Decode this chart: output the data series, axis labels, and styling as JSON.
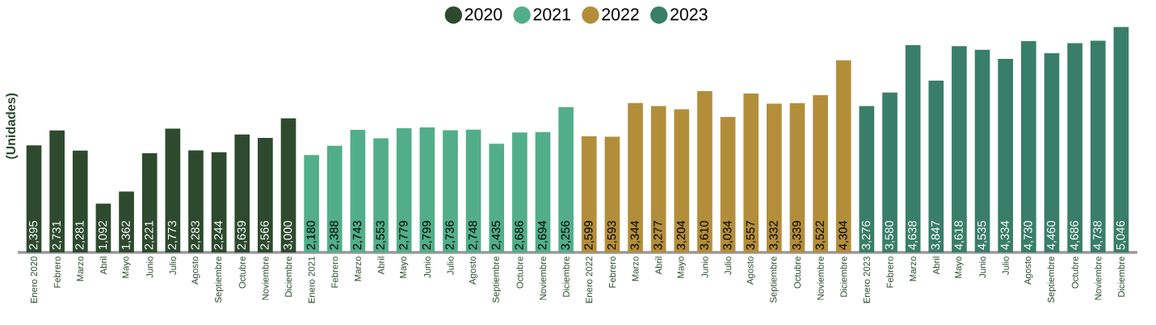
{
  "chart_data": {
    "type": "bar",
    "ylabel": "(Unidades)",
    "categories": [
      "Enero 2020",
      "Febrero",
      "Marzo",
      "Abril",
      "Mayo",
      "Junio",
      "Julio",
      "Agosto",
      "Septiembre",
      "Octubre",
      "Noviembre",
      "Diciembre",
      "Enero 2021",
      "Febrero",
      "Marzo",
      "Abril",
      "Mayo",
      "Junio",
      "Julio",
      "Agosto",
      "Septiembre",
      "Octubre",
      "Noviembre",
      "Diciembre",
      "Enero 2022",
      "Febrero",
      "Marzo",
      "Abril",
      "Mayo",
      "Junio",
      "Julio",
      "Agosto",
      "Septiembre",
      "Octubre",
      "Noviembre",
      "Diciembre",
      "Enero 2023",
      "Febrero",
      "Marzo",
      "Abril",
      "Mayo",
      "Junio",
      "Julio",
      "Agosto",
      "Septiembre",
      "Octubre",
      "Noviembre",
      "Diciembre"
    ],
    "series": [
      {
        "name": "2020",
        "color": "#2d4a2e",
        "values": [
          2395,
          2731,
          2281,
          1092,
          1362,
          2221,
          2773,
          2283,
          2244,
          2639,
          2566,
          3000,
          null,
          null,
          null,
          null,
          null,
          null,
          null,
          null,
          null,
          null,
          null,
          null,
          null,
          null,
          null,
          null,
          null,
          null,
          null,
          null,
          null,
          null,
          null,
          null,
          null,
          null,
          null,
          null,
          null,
          null,
          null,
          null,
          null,
          null,
          null,
          null
        ],
        "value_labels": [
          "2,395",
          "2,731",
          "2,281",
          "1,092",
          "1,362",
          "2,221",
          "2,773",
          "2,283",
          "2,244",
          "2,639",
          "2,566",
          "3,000",
          null,
          null,
          null,
          null,
          null,
          null,
          null,
          null,
          null,
          null,
          null,
          null,
          null,
          null,
          null,
          null,
          null,
          null,
          null,
          null,
          null,
          null,
          null,
          null,
          null,
          null,
          null,
          null,
          null,
          null,
          null,
          null,
          null,
          null,
          null,
          null
        ]
      },
      {
        "name": "2021",
        "color": "#52ae8a",
        "values": [
          null,
          null,
          null,
          null,
          null,
          null,
          null,
          null,
          null,
          null,
          null,
          null,
          2180,
          2388,
          2743,
          2553,
          2779,
          2799,
          2736,
          2748,
          2435,
          2686,
          2694,
          3256,
          null,
          null,
          null,
          null,
          null,
          null,
          null,
          null,
          null,
          null,
          null,
          null,
          null,
          null,
          null,
          null,
          null,
          null,
          null,
          null,
          null,
          null,
          null,
          null
        ],
        "value_labels": [
          null,
          null,
          null,
          null,
          null,
          null,
          null,
          null,
          null,
          null,
          null,
          null,
          "2,180",
          "2,388",
          "2,743",
          "2,553",
          "2,779",
          "2,799",
          "2,736",
          "2,748",
          "2,435",
          "2,686",
          "2,694",
          "3,256",
          null,
          null,
          null,
          null,
          null,
          null,
          null,
          null,
          null,
          null,
          null,
          null,
          null,
          null,
          null,
          null,
          null,
          null,
          null,
          null,
          null,
          null,
          null,
          null
        ]
      },
      {
        "name": "2022",
        "color": "#b38e3a",
        "values": [
          null,
          null,
          null,
          null,
          null,
          null,
          null,
          null,
          null,
          null,
          null,
          null,
          null,
          null,
          null,
          null,
          null,
          null,
          null,
          null,
          null,
          null,
          null,
          null,
          2599,
          2593,
          3344,
          3277,
          3204,
          3610,
          3034,
          3557,
          3332,
          3339,
          3522,
          4304,
          null,
          null,
          null,
          null,
          null,
          null,
          null,
          null,
          null,
          null,
          null,
          null
        ],
        "value_labels": [
          null,
          null,
          null,
          null,
          null,
          null,
          null,
          null,
          null,
          null,
          null,
          null,
          null,
          null,
          null,
          null,
          null,
          null,
          null,
          null,
          null,
          null,
          null,
          null,
          "2,599",
          "2,593",
          "3,344",
          "3,277",
          "3,204",
          "3,610",
          "3,034",
          "3,557",
          "3,332",
          "3,339",
          "3,522",
          "4,304",
          null,
          null,
          null,
          null,
          null,
          null,
          null,
          null,
          null,
          null,
          null,
          null
        ]
      },
      {
        "name": "2023",
        "color": "#397e68",
        "values": [
          null,
          null,
          null,
          null,
          null,
          null,
          null,
          null,
          null,
          null,
          null,
          null,
          null,
          null,
          null,
          null,
          null,
          null,
          null,
          null,
          null,
          null,
          null,
          null,
          null,
          null,
          null,
          null,
          null,
          null,
          null,
          null,
          null,
          null,
          null,
          null,
          3276,
          3580,
          4638,
          3847,
          4618,
          4535,
          4334,
          4730,
          4460,
          4686,
          4738,
          5046
        ],
        "value_labels": [
          null,
          null,
          null,
          null,
          null,
          null,
          null,
          null,
          null,
          null,
          null,
          null,
          null,
          null,
          null,
          null,
          null,
          null,
          null,
          null,
          null,
          null,
          null,
          null,
          null,
          null,
          null,
          null,
          null,
          null,
          null,
          null,
          null,
          null,
          null,
          null,
          "3,276",
          "3,580",
          "4,638",
          "3,847",
          "4,618",
          "4,535",
          "4,334",
          "4,730",
          "4,460",
          "4,686",
          "4,738",
          "5,046"
        ]
      }
    ],
    "legend": "top"
  }
}
